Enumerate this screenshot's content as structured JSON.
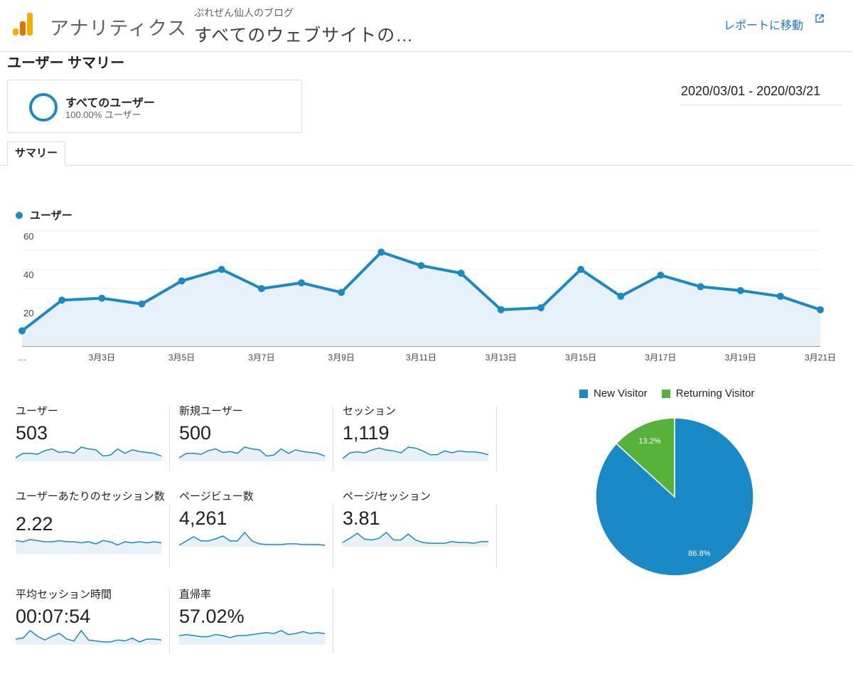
{
  "header": {
    "app_title": "アナリティクス",
    "account": "ぷれぜん仙人のブログ",
    "property": "すべてのウェブサイトの…",
    "report_link": "レポートに移動",
    "logo_icon": "analytics-logo-icon",
    "external_icon": "external-link-icon"
  },
  "page_title": "ユーザー サマリー",
  "segment": {
    "name": "すべてのユーザー",
    "subtitle": "100.00% ユーザー"
  },
  "date_range": "2020/03/01 - 2020/03/21",
  "tabs": [
    {
      "label": "サマリー",
      "active": true
    }
  ],
  "colors": {
    "accent": "#1a8ac6",
    "returning": "#57b23b",
    "fill": "#e6f1f9"
  },
  "chart_data": [
    {
      "type": "area",
      "series": [
        {
          "name": "ユーザー",
          "values": [
            8,
            24,
            25,
            22,
            34,
            40,
            30,
            33,
            28,
            49,
            42,
            38,
            19,
            20,
            40,
            26,
            37,
            31,
            29,
            26,
            19
          ]
        }
      ],
      "x": [
        "3月1日",
        "3月2日",
        "3月3日",
        "3月4日",
        "3月5日",
        "3月6日",
        "3月7日",
        "3月8日",
        "3月9日",
        "3月10日",
        "3月11日",
        "3月12日",
        "3月13日",
        "3月14日",
        "3月15日",
        "3月16日",
        "3月17日",
        "3月18日",
        "3月19日",
        "3月20日",
        "3月21日"
      ],
      "x_tick_labels": [
        "…",
        "3月3日",
        "3月5日",
        "3月7日",
        "3月9日",
        "3月11日",
        "3月13日",
        "3月15日",
        "3月17日",
        "3月19日",
        "3月21日"
      ],
      "y_ticks": [
        "20",
        "40",
        "60"
      ],
      "ylim": [
        0,
        60
      ],
      "grid": true,
      "legend": "top-left"
    },
    {
      "type": "pie",
      "categories": [
        "New Visitor",
        "Returning Visitor"
      ],
      "values": [
        86.8,
        13.2
      ],
      "labels": [
        "86.8%",
        "13.2%"
      ],
      "colors": [
        "#1a8ac6",
        "#57b23b"
      ],
      "legend": "top"
    }
  ],
  "metrics": [
    {
      "label": "ユーザー",
      "value": "503",
      "spark": [
        4,
        9,
        9,
        8,
        12,
        14,
        10,
        11,
        9,
        16,
        14,
        13,
        6,
        7,
        14,
        9,
        13,
        11,
        10,
        9,
        6
      ]
    },
    {
      "label": "新規ユーザー",
      "value": "500",
      "spark": [
        4,
        9,
        9,
        8,
        12,
        14,
        10,
        11,
        9,
        16,
        14,
        13,
        6,
        7,
        14,
        9,
        13,
        11,
        10,
        9,
        6
      ]
    },
    {
      "label": "セッション",
      "value": "1,119",
      "spark": [
        3,
        9,
        10,
        9,
        12,
        14,
        12,
        11,
        9,
        15,
        14,
        11,
        7,
        7,
        11,
        9,
        11,
        10,
        10,
        9,
        7
      ]
    },
    {
      "label": "ユーザーあたりのセッション数",
      "value": "2.22",
      "spark": [
        12,
        11,
        13,
        12,
        11,
        11,
        12,
        11,
        11,
        10,
        11,
        9,
        12,
        11,
        8,
        11,
        10,
        11,
        10,
        11,
        10
      ]
    },
    {
      "label": "ページビュー数",
      "value": "4,261",
      "spark": [
        2,
        8,
        14,
        8,
        8,
        11,
        15,
        8,
        8,
        20,
        8,
        4,
        3,
        3,
        3,
        4,
        4,
        3,
        3,
        3,
        2
      ]
    },
    {
      "label": "ページ/セッション",
      "value": "3.81",
      "spark": [
        5,
        10,
        16,
        9,
        8,
        10,
        17,
        8,
        8,
        15,
        8,
        5,
        4,
        4,
        4,
        6,
        5,
        5,
        4,
        6,
        6
      ]
    },
    {
      "label": "平均セッション時間",
      "value": "00:07:54",
      "spark": [
        6,
        7,
        15,
        9,
        5,
        9,
        12,
        6,
        4,
        15,
        5,
        4,
        3,
        3,
        5,
        4,
        7,
        3,
        6,
        6,
        5
      ]
    },
    {
      "label": "直帰率",
      "value": "57.02%",
      "spark": [
        9,
        10,
        9,
        8,
        8,
        10,
        9,
        7,
        9,
        9,
        10,
        11,
        12,
        11,
        14,
        10,
        11,
        13,
        11,
        12,
        11
      ]
    }
  ]
}
